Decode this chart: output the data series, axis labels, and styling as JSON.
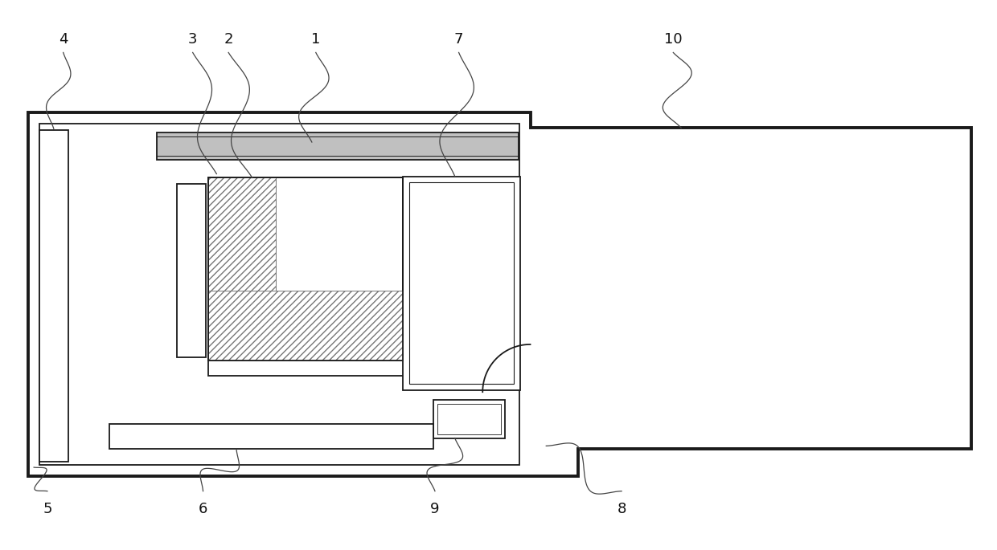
{
  "bg_color": "#ffffff",
  "line_color": "#1a1a1a",
  "fig_width": 12.4,
  "fig_height": 6.85,
  "outer_lw": 2.8,
  "thin_lw": 1.3,
  "med_lw": 1.8,
  "label_fs": 13
}
